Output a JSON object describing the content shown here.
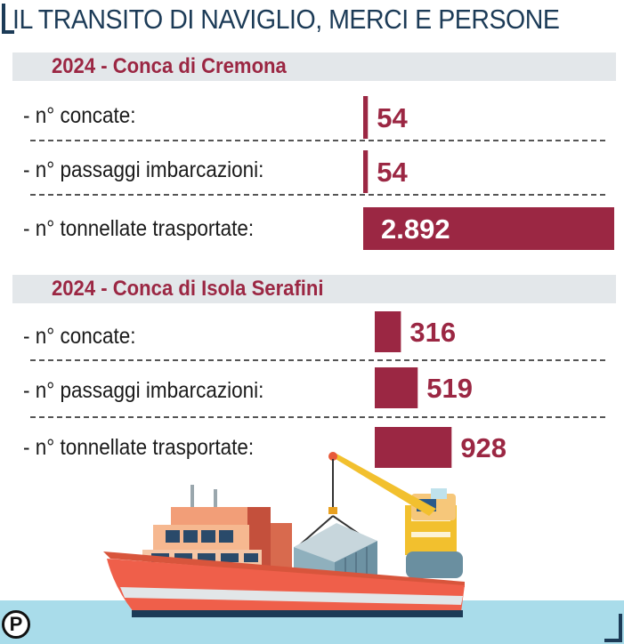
{
  "title": "IL TRANSITO DI  NAVIGLIO, MERCI E PERSONE",
  "chart_data": [
    {
      "type": "bar",
      "title": "2024 - Conca di Cremona",
      "categories": [
        "- n° concate:",
        "- n° passaggi imbarcazioni:",
        "- n° tonnellate trasportate:"
      ],
      "values": [
        54,
        54,
        2892
      ],
      "value_labels": [
        "54",
        "54",
        "2.892"
      ],
      "bar_color": "#9b2743"
    },
    {
      "type": "bar",
      "title": "2024 - Conca di Isola Serafini",
      "categories": [
        "- n° concate:",
        "- n° passaggi imbarcazioni:",
        "- n° tonnellate trasportate:"
      ],
      "values": [
        316,
        519,
        928
      ],
      "value_labels": [
        "316",
        "519",
        "928"
      ],
      "bar_color": "#9b2743"
    }
  ],
  "logo": "P",
  "icons": [
    "cargo-ship-icon",
    "crane-icon",
    "container-icon"
  ]
}
